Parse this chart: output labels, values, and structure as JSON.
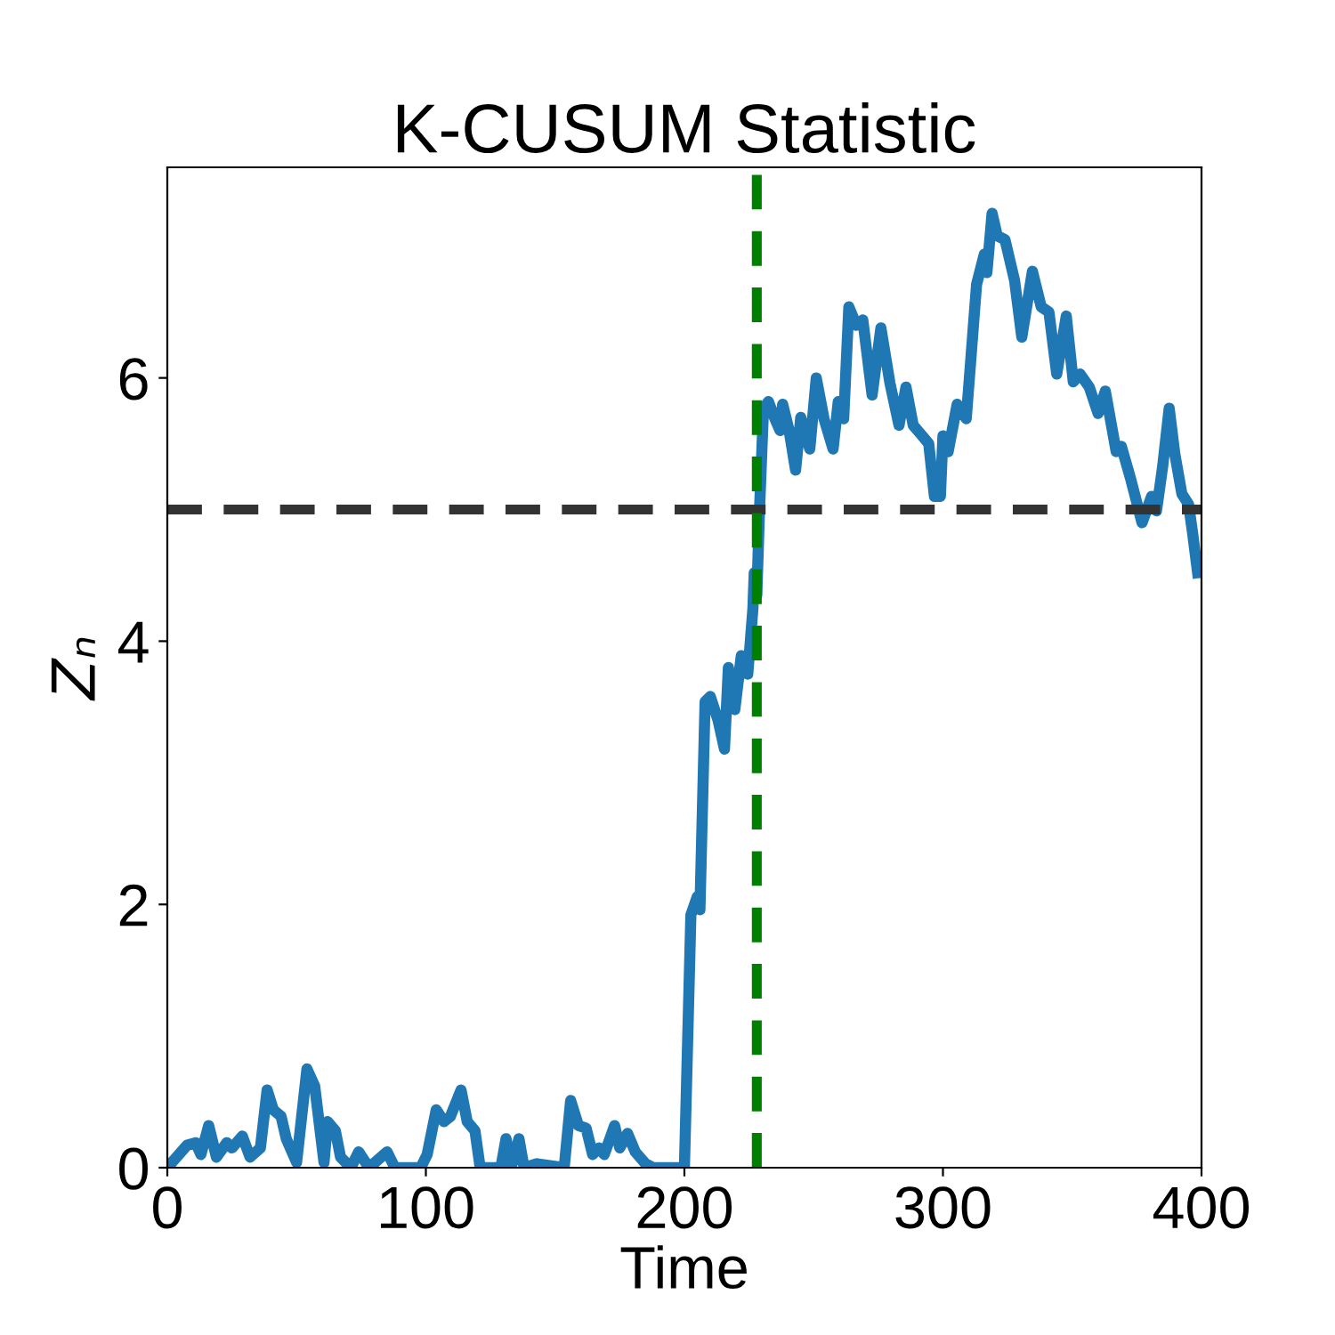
{
  "chart_data": {
    "type": "line",
    "title": "K-CUSUM Statistic",
    "xlabel": "Time",
    "ylabel": "Zₙ",
    "xlim": [
      0,
      400
    ],
    "ylim": [
      0,
      7.6
    ],
    "xticks": [
      0,
      100,
      200,
      300,
      400
    ],
    "yticks": [
      0,
      2,
      4,
      6
    ],
    "grid": false,
    "legend": false,
    "series": [
      {
        "color": "#1f77b4",
        "line_style": "solid",
        "x": [
          0,
          7.6,
          11,
          13,
          16,
          19,
          23,
          25,
          29,
          32,
          36,
          38.6,
          41,
          44,
          46,
          50,
          54,
          57,
          60.6,
          62,
          65,
          67,
          71,
          74,
          78,
          85,
          88,
          98,
          100.5,
          104,
          107,
          109.5,
          113.6,
          116,
          119,
          121,
          129,
          131,
          133,
          136,
          138,
          143,
          153.5,
          156,
          159,
          162,
          164.5,
          167,
          169,
          173,
          175,
          178,
          181,
          185,
          188,
          200,
          202.5,
          205,
          206,
          208,
          210,
          213,
          215.5,
          217,
          219.5,
          222,
          224.5,
          226.5,
          227,
          228,
          229,
          230.6,
          232.5,
          235,
          237,
          238,
          240.5,
          243,
          245,
          248.5,
          251,
          254,
          257.5,
          259.5,
          261.6,
          263.6,
          266.5,
          269,
          272.6,
          276,
          279.5,
          283,
          285.7,
          288.5,
          292,
          294.5,
          296.7,
          299,
          300,
          302,
          305.5,
          309,
          310.5,
          313,
          316,
          317,
          319,
          321,
          324,
          327.7,
          330.5,
          334.6,
          338,
          341,
          344,
          347.7,
          350.4,
          353,
          356.6,
          360,
          362.8,
          367,
          369,
          372.5,
          377,
          380.7,
          382.6,
          385,
          387.5,
          389.7,
          392.4,
          395,
          396.5,
          398.5
        ],
        "values": [
          0,
          0.17,
          0.19,
          0.1,
          0.32,
          0.08,
          0.19,
          0.15,
          0.24,
          0.08,
          0.15,
          0.59,
          0.44,
          0.39,
          0.22,
          0.04,
          0.75,
          0.62,
          0.04,
          0.35,
          0.28,
          0.08,
          0,
          0.12,
          0,
          0.12,
          0,
          0,
          0.1,
          0.44,
          0.35,
          0.39,
          0.59,
          0.35,
          0.28,
          0,
          0,
          0.22,
          0,
          0.22,
          0,
          0.03,
          0,
          0.51,
          0.32,
          0.3,
          0.1,
          0.15,
          0.1,
          0.32,
          0.15,
          0.26,
          0.12,
          0.03,
          0,
          0,
          1.92,
          2.06,
          1.96,
          3.54,
          3.58,
          3.4,
          3.18,
          3.8,
          3.48,
          3.89,
          3.75,
          4.25,
          4.52,
          4.35,
          4.97,
          5.77,
          5.82,
          5.69,
          5.6,
          5.8,
          5.6,
          5.3,
          5.7,
          5.46,
          6.0,
          5.69,
          5.46,
          5.82,
          5.69,
          6.54,
          6.4,
          6.44,
          5.87,
          6.38,
          5.96,
          5.64,
          5.93,
          5.64,
          5.56,
          5.5,
          5.1,
          5.1,
          5.56,
          5.44,
          5.8,
          5.69,
          6.07,
          6.71,
          6.94,
          6.8,
          7.25,
          7.08,
          7.05,
          6.74,
          6.31,
          6.81,
          6.54,
          6.5,
          6.03,
          6.47,
          5.97,
          6.03,
          5.93,
          5.73,
          5.9,
          5.44,
          5.48,
          5.24,
          4.9,
          5.1,
          4.99,
          5.33,
          5.77,
          5.42,
          5.12,
          5.04,
          4.83,
          4.52
        ]
      }
    ],
    "ref_lines": [
      {
        "axis": "y",
        "value": 5,
        "color": "#333333",
        "line_style": "dashed"
      },
      {
        "axis": "x",
        "value": 228,
        "color": "#008000",
        "line_style": "dashed"
      }
    ]
  }
}
